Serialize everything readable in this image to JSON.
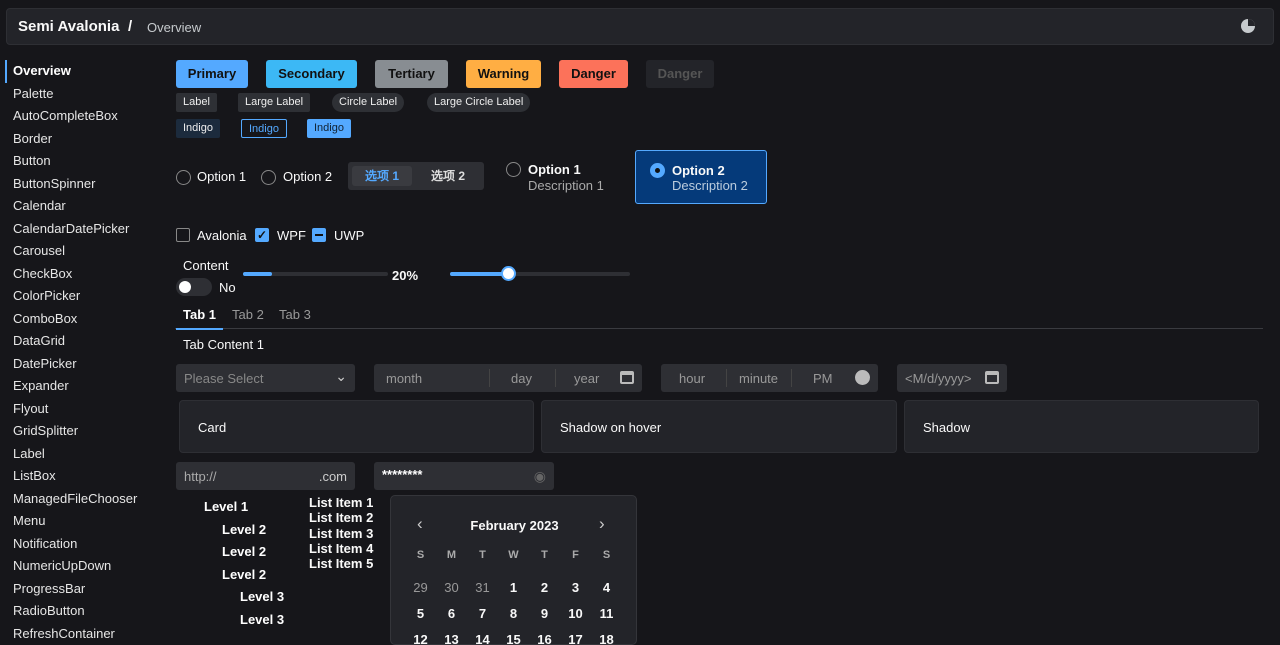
{
  "header": {
    "app_title": "Semi Avalonia",
    "separator": "/",
    "page": "Overview",
    "theme_icon": "theme-toggle-icon"
  },
  "sidebar": {
    "items": [
      "Overview",
      "Palette",
      "AutoCompleteBox",
      "Border",
      "Button",
      "ButtonSpinner",
      "Calendar",
      "CalendarDatePicker",
      "Carousel",
      "CheckBox",
      "ColorPicker",
      "ComboBox",
      "DataGrid",
      "DatePicker",
      "Expander",
      "Flyout",
      "GridSplitter",
      "Label",
      "ListBox",
      "ManagedFileChooser",
      "Menu",
      "Notification",
      "NumericUpDown",
      "ProgressBar",
      "RadioButton",
      "RefreshContainer"
    ],
    "selected": "Overview"
  },
  "buttons": [
    {
      "label": "Primary",
      "color": "#54a9ff"
    },
    {
      "label": "Secondary",
      "color": "#3cb8f5"
    },
    {
      "label": "Tertiary",
      "color": "#888d92"
    },
    {
      "label": "Warning",
      "color": "#ffae43"
    },
    {
      "label": "Danger",
      "color": "#fc725a"
    },
    {
      "label": "Danger",
      "color": "#232429",
      "disabled": true
    }
  ],
  "labels": [
    "Label",
    "Large Label",
    "Circle Label",
    "Large Circle Label"
  ],
  "tags": [
    "Indigo",
    "Indigo",
    "Indigo"
  ],
  "radios": {
    "option1": "Option 1",
    "option2": "Option 2"
  },
  "segmented": {
    "items": [
      "选项 1",
      "选项 2"
    ],
    "selected": 0
  },
  "radio_cards": [
    {
      "title": "Option 1",
      "desc": "Description 1",
      "checked": false
    },
    {
      "title": "Option 2",
      "desc": "Description 2",
      "checked": true
    }
  ],
  "checkboxes": [
    {
      "label": "Avalonia",
      "state": "unchecked"
    },
    {
      "label": "WPF",
      "state": "checked"
    },
    {
      "label": "UWP",
      "state": "indeterminate"
    }
  ],
  "toggle": {
    "header": "Content",
    "label": "No",
    "on": false
  },
  "progress": {
    "value": 20,
    "text": "20%"
  },
  "slider": {
    "value": 32
  },
  "tabs": {
    "items": [
      "Tab 1",
      "Tab 2",
      "Tab 3"
    ],
    "selected": 0,
    "content": "Tab Content 1"
  },
  "combo": {
    "placeholder": "Please Select"
  },
  "date": {
    "month": "month",
    "day": "day",
    "year": "year"
  },
  "time": {
    "hour": "hour",
    "minute": "minute",
    "ampm": "PM"
  },
  "calendar_picker": {
    "placeholder": "<M/d/yyyy>"
  },
  "cards": [
    "Card",
    "Shadow on hover",
    "Shadow"
  ],
  "url": {
    "prefix": "http://",
    "suffix": ".com"
  },
  "password": {
    "value": "********"
  },
  "tree": [
    {
      "label": "Level 1",
      "level": 1,
      "expanded": true
    },
    {
      "label": "Level 2",
      "level": 2
    },
    {
      "label": "Level 2",
      "level": 2
    },
    {
      "label": "Level 2",
      "level": 2,
      "expanded": true
    },
    {
      "label": "Level 3",
      "level": 3
    },
    {
      "label": "Level 3",
      "level": 3
    }
  ],
  "list": [
    "List Item 1",
    "List Item 2",
    "List Item 3",
    "List Item 4",
    "List Item 5"
  ],
  "calendar": {
    "title": "February 2023",
    "weekdays": [
      "S",
      "M",
      "T",
      "W",
      "T",
      "F",
      "S"
    ],
    "rows": [
      [
        "29",
        "30",
        "31",
        "1",
        "2",
        "3",
        "4"
      ],
      [
        "5",
        "6",
        "7",
        "8",
        "9",
        "10",
        "11"
      ],
      [
        "12",
        "13",
        "14",
        "15",
        "16",
        "17",
        "18"
      ]
    ]
  }
}
